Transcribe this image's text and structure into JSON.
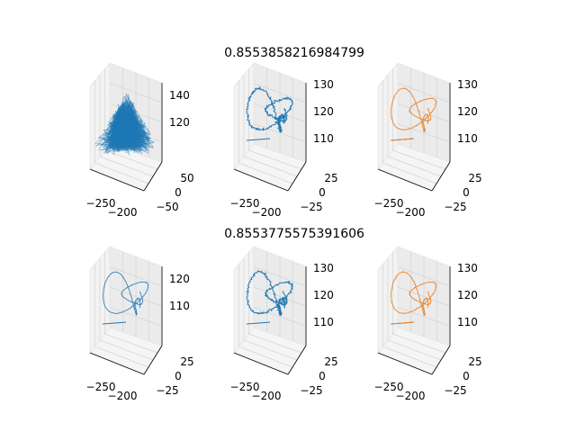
{
  "chart_data": {
    "type": "line",
    "layout": "2x3 grid of 3D line plots",
    "row_titles": [
      "0.8553858216984799",
      "0.8553775575391606"
    ],
    "colors": {
      "primary": "#1f77b4",
      "secondary": "#ff7f0e",
      "pane": "#f2f2f2",
      "grid": "#d9d9d9"
    },
    "panels": [
      {
        "row": 0,
        "col": 0,
        "style": "noisy-dense",
        "x_ticks": [
          "−250",
          "−200"
        ],
        "y_ticks": [
          "50",
          "0",
          "−50"
        ],
        "z_ticks": [
          "140",
          "120"
        ],
        "series": [
          {
            "color": "#1f77b4"
          }
        ]
      },
      {
        "row": 0,
        "col": 1,
        "style": "knot-noisy",
        "x_ticks": [
          "−250",
          "−200"
        ],
        "y_ticks": [
          "25",
          "0",
          "−25"
        ],
        "z_ticks": [
          "130",
          "120",
          "110"
        ],
        "series": [
          {
            "color": "#1f77b4"
          }
        ]
      },
      {
        "row": 0,
        "col": 2,
        "style": "knot-overlay",
        "x_ticks": [
          "−250",
          "−200"
        ],
        "y_ticks": [
          "25",
          "0",
          "−25"
        ],
        "z_ticks": [
          "130",
          "120",
          "110"
        ],
        "series": [
          {
            "color": "#1f77b4"
          },
          {
            "color": "#ff7f0e"
          }
        ]
      },
      {
        "row": 1,
        "col": 0,
        "style": "knot-clean",
        "x_ticks": [
          "−250",
          "−200"
        ],
        "y_ticks": [
          "25",
          "0",
          "−25"
        ],
        "z_ticks": [
          "120",
          "110"
        ],
        "series": [
          {
            "color": "#1f77b4"
          }
        ]
      },
      {
        "row": 1,
        "col": 1,
        "style": "knot-noisy",
        "x_ticks": [
          "−250",
          "−200"
        ],
        "y_ticks": [
          "25",
          "0",
          "−25"
        ],
        "z_ticks": [
          "130",
          "120",
          "110"
        ],
        "series": [
          {
            "color": "#1f77b4"
          }
        ]
      },
      {
        "row": 1,
        "col": 2,
        "style": "knot-overlay",
        "x_ticks": [
          "−250",
          "−200"
        ],
        "y_ticks": [
          "25",
          "0",
          "−25"
        ],
        "z_ticks": [
          "130",
          "120",
          "110"
        ],
        "series": [
          {
            "color": "#1f77b4"
          },
          {
            "color": "#ff7f0e"
          }
        ]
      }
    ]
  }
}
